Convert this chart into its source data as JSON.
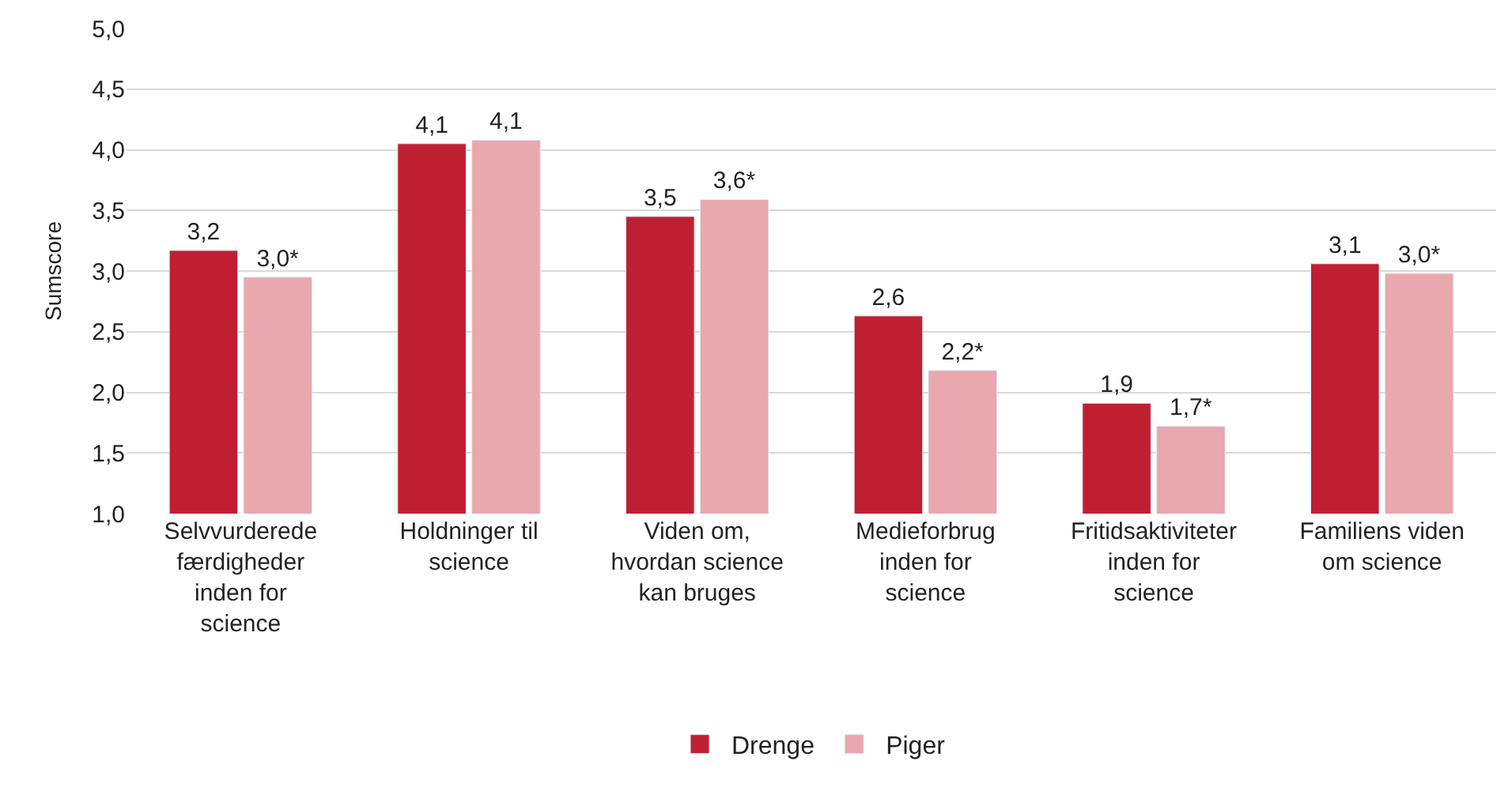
{
  "chart_data": {
    "type": "bar",
    "ylabel": "Sumscore",
    "categories": [
      "Selvvurderede\nfærdigheder\ninden for\nscience",
      "Holdninger til\nscience",
      "Viden om,\nhvordan science\nkan bruges",
      "Medieforbrug\ninden for\nscience",
      "Fritidsaktiviteter\ninden for\nscience",
      "Familiens viden\nom science"
    ],
    "series": [
      {
        "name": "Drenge",
        "color": "#c01f31",
        "values": [
          3.17,
          4.05,
          3.45,
          2.63,
          1.91,
          3.06
        ],
        "value_labels": [
          "3,2",
          "4,1",
          "3,5",
          "2,6",
          "1,9",
          "3,1"
        ]
      },
      {
        "name": "Piger",
        "color": "#e8a8ae",
        "values": [
          2.95,
          4.08,
          3.59,
          2.18,
          1.72,
          2.98
        ],
        "value_labels": [
          "3,0*",
          "4,1",
          "3,6*",
          "2,2*",
          "1,7*",
          "3,0*"
        ]
      }
    ],
    "ylim": [
      1,
      5
    ],
    "yticks": [
      {
        "value": 1,
        "label": "1,0"
      },
      {
        "value": 1.5,
        "label": "1,5"
      },
      {
        "value": 2,
        "label": "2,0"
      },
      {
        "value": 2.5,
        "label": "2,5"
      },
      {
        "value": 3,
        "label": "3,0"
      },
      {
        "value": 3.5,
        "label": "3,5"
      },
      {
        "value": 4,
        "label": "4,0"
      },
      {
        "value": 4.5,
        "label": "4,5"
      },
      {
        "value": 5,
        "label": "5,0"
      }
    ],
    "grid": "y",
    "legend": "bottom"
  }
}
